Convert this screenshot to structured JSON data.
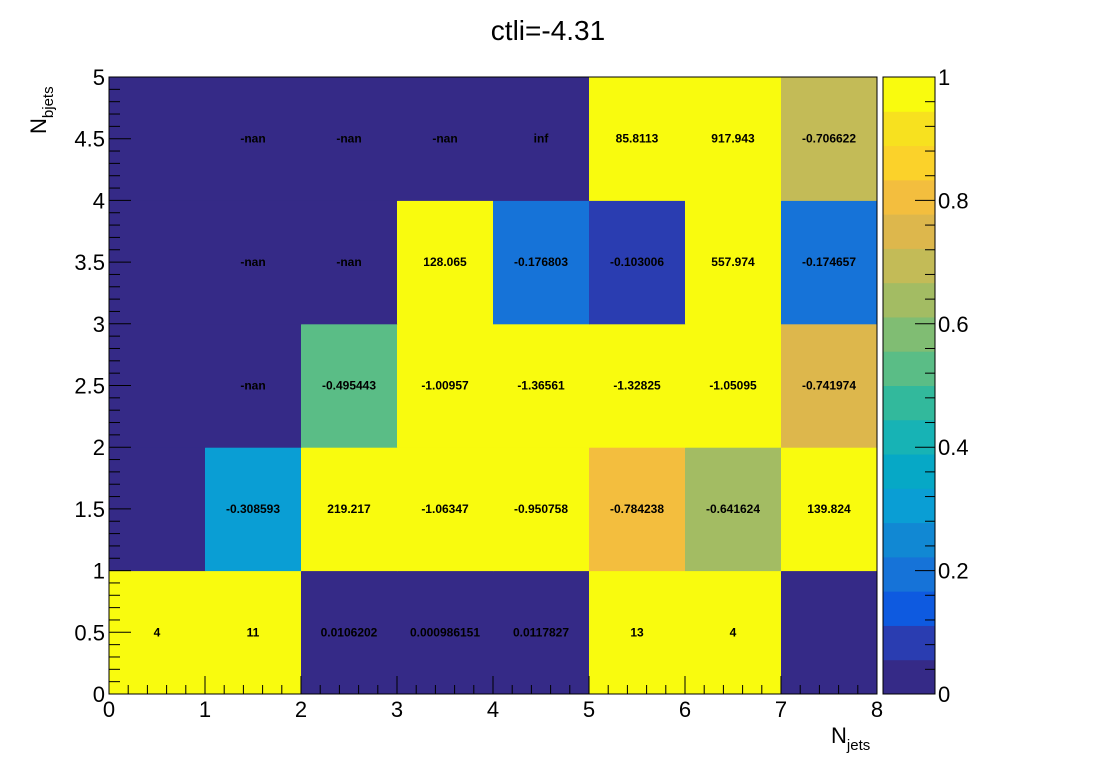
{
  "chart_data": {
    "type": "heatmap",
    "title": "ctli=-4.31",
    "xlabel": {
      "base": "N",
      "sub": "jets"
    },
    "ylabel": {
      "base": "N",
      "sub": "bjets"
    },
    "xlim": [
      0,
      8
    ],
    "ylim": [
      0,
      5
    ],
    "zlim": [
      0,
      1
    ],
    "x_ticks": [
      "0",
      "1",
      "2",
      "3",
      "4",
      "5",
      "6",
      "7",
      "8"
    ],
    "y_ticks": [
      "0",
      "0.5",
      "1",
      "1.5",
      "2",
      "2.5",
      "3",
      "3.5",
      "4",
      "4.5",
      "5"
    ],
    "z_ticks": [
      "0",
      "0.2",
      "0.4",
      "0.6",
      "0.8",
      "1"
    ],
    "x_edges": [
      0,
      1,
      2,
      3,
      4,
      5,
      6,
      7,
      8
    ],
    "y_edges": [
      0,
      1,
      2,
      3,
      4,
      5
    ],
    "cells": [
      {
        "x": 0,
        "y": 0,
        "label": "4",
        "z": 1
      },
      {
        "x": 1,
        "y": 0,
        "label": "11",
        "z": 1
      },
      {
        "x": 2,
        "y": 0,
        "label": "0.0106202",
        "z": 0.0106202
      },
      {
        "x": 3,
        "y": 0,
        "label": "0.000986151",
        "z": 0.000986151
      },
      {
        "x": 4,
        "y": 0,
        "label": "0.0117827",
        "z": 0.0117827
      },
      {
        "x": 5,
        "y": 0,
        "label": "13",
        "z": 1
      },
      {
        "x": 6,
        "y": 0,
        "label": "4",
        "z": 1
      },
      {
        "x": 7,
        "y": 0,
        "label": "",
        "z": 0
      },
      {
        "x": 0,
        "y": 1,
        "label": "",
        "z": 0.01
      },
      {
        "x": 1,
        "y": 1,
        "label": "-0.308593",
        "z": 0.3
      },
      {
        "x": 2,
        "y": 1,
        "label": "219.217",
        "z": 1
      },
      {
        "x": 3,
        "y": 1,
        "label": "-1.06347",
        "z": 1
      },
      {
        "x": 4,
        "y": 1,
        "label": "-0.950758",
        "z": 1
      },
      {
        "x": 5,
        "y": 1,
        "label": "-0.784238",
        "z": 0.78
      },
      {
        "x": 6,
        "y": 1,
        "label": "-0.641624",
        "z": 0.64
      },
      {
        "x": 7,
        "y": 1,
        "label": "139.824",
        "z": 1
      },
      {
        "x": 0,
        "y": 2,
        "label": "",
        "z": 0.01
      },
      {
        "x": 1,
        "y": 2,
        "label": "-nan",
        "z": 0
      },
      {
        "x": 2,
        "y": 2,
        "label": "-0.495443",
        "z": 0.5
      },
      {
        "x": 3,
        "y": 2,
        "label": "-1.00957",
        "z": 1
      },
      {
        "x": 4,
        "y": 2,
        "label": "-1.36561",
        "z": 1
      },
      {
        "x": 5,
        "y": 2,
        "label": "-1.32825",
        "z": 1
      },
      {
        "x": 6,
        "y": 2,
        "label": "-1.05095",
        "z": 1
      },
      {
        "x": 7,
        "y": 2,
        "label": "-0.741974",
        "z": 0.74
      },
      {
        "x": 0,
        "y": 3,
        "label": "",
        "z": 0.01
      },
      {
        "x": 1,
        "y": 3,
        "label": "-nan",
        "z": 0
      },
      {
        "x": 2,
        "y": 3,
        "label": "-nan",
        "z": 0
      },
      {
        "x": 3,
        "y": 3,
        "label": "128.065",
        "z": 1
      },
      {
        "x": 4,
        "y": 3,
        "label": "-0.176803",
        "z": 0.18
      },
      {
        "x": 5,
        "y": 3,
        "label": "-0.103006",
        "z": 0.1
      },
      {
        "x": 6,
        "y": 3,
        "label": "557.974",
        "z": 1
      },
      {
        "x": 7,
        "y": 3,
        "label": "-0.174657",
        "z": 0.17
      },
      {
        "x": 0,
        "y": 4,
        "label": "",
        "z": 0.01
      },
      {
        "x": 1,
        "y": 4,
        "label": "-nan",
        "z": 0
      },
      {
        "x": 2,
        "y": 4,
        "label": "-nan",
        "z": 0
      },
      {
        "x": 3,
        "y": 4,
        "label": "-nan",
        "z": 0
      },
      {
        "x": 4,
        "y": 4,
        "label": "inf",
        "z": 0
      },
      {
        "x": 5,
        "y": 4,
        "label": "85.8113",
        "z": 1
      },
      {
        "x": 6,
        "y": 4,
        "label": "917.943",
        "z": 1
      },
      {
        "x": 7,
        "y": 4,
        "label": "-0.706622",
        "z": 0.71
      }
    ],
    "palette": [
      "#352a87",
      "#2a3db1",
      "#0e5ae0",
      "#1673d8",
      "#1188d3",
      "#0a9ed4",
      "#06a8c6",
      "#17b3b5",
      "#32b99c",
      "#5abd86",
      "#80bd73",
      "#a3bc63",
      "#c3bb57",
      "#ddb74c",
      "#f3be3e",
      "#fbd22a",
      "#f7e11f",
      "#f9fb0e"
    ],
    "nan_color": "#352a87"
  }
}
